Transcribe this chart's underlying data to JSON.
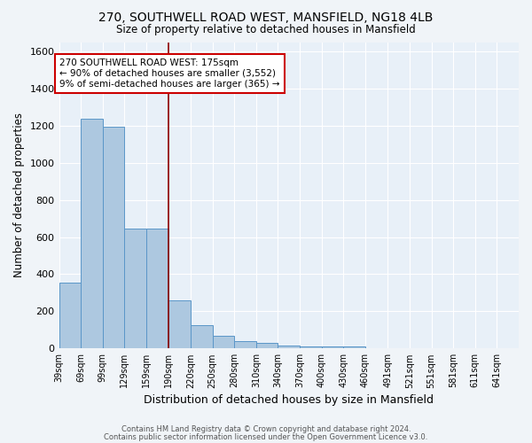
{
  "title1": "270, SOUTHWELL ROAD WEST, MANSFIELD, NG18 4LB",
  "title2": "Size of property relative to detached houses in Mansfield",
  "xlabel": "Distribution of detached houses by size in Mansfield",
  "ylabel": "Number of detached properties",
  "footer1": "Contains HM Land Registry data © Crown copyright and database right 2024.",
  "footer2": "Contains public sector information licensed under the Open Government Licence v3.0.",
  "bar_labels": [
    "39sqm",
    "69sqm",
    "99sqm",
    "129sqm",
    "159sqm",
    "190sqm",
    "220sqm",
    "250sqm",
    "280sqm",
    "310sqm",
    "340sqm",
    "370sqm",
    "400sqm",
    "430sqm",
    "460sqm",
    "491sqm",
    "521sqm",
    "551sqm",
    "581sqm",
    "611sqm",
    "641sqm"
  ],
  "bar_values": [
    355,
    1235,
    1195,
    645,
    645,
    260,
    125,
    70,
    38,
    28,
    18,
    12,
    10,
    10,
    0,
    0,
    0,
    0,
    0,
    0,
    0
  ],
  "bar_color": "#adc8e0",
  "bar_edge_color": "#5a96c8",
  "bg_color": "#e8f0f8",
  "grid_color": "#ffffff",
  "annotation_line_color": "#8b0000",
  "annotation_text_lines": [
    "270 SOUTHWELL ROAD WEST: 175sqm",
    "← 90% of detached houses are smaller (3,552)",
    "9% of semi-detached houses are larger (365) →"
  ],
  "annotation_box_color": "#ffffff",
  "annotation_box_edge": "#cc0000",
  "ylim": [
    0,
    1650
  ],
  "bin_width": 30,
  "fig_width": 6.0,
  "fig_height": 5.0,
  "dpi": 100
}
